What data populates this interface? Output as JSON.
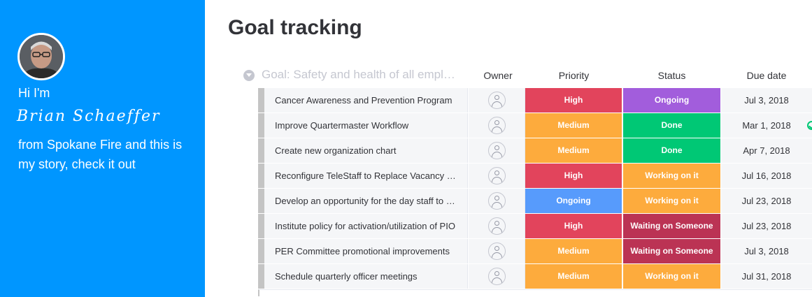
{
  "sidebar": {
    "greeting": "Hi I'm",
    "name": "Brian Schaeffer",
    "story": "from Spokane Fire and this is my story, check it out"
  },
  "page": {
    "title": "Goal tracking"
  },
  "group": {
    "title": "Goal: Safety and health of all empl…",
    "columns": {
      "owner": "Owner",
      "priority": "Priority",
      "status": "Status",
      "due_date": "Due date"
    }
  },
  "colors": {
    "sidebar_bg": "#0096ff",
    "high": "#e2445c",
    "medium": "#fdab3d",
    "ongoing_priority": "#579bfc",
    "ongoing_status": "#a25ddc",
    "done": "#00c875",
    "working_on_it": "#fdab3d",
    "waiting_on_someone": "#bb3354"
  },
  "rows": [
    {
      "name": "Cancer Awareness and Prevention Program",
      "priority": "High",
      "priority_color": "#e2445c",
      "status": "Ongoing",
      "status_color": "#a25ddc",
      "due": "Jul 3, 2018"
    },
    {
      "name": "Improve Quartermaster Workflow",
      "priority": "Medium",
      "priority_color": "#fdab3d",
      "status": "Done",
      "status_color": "#00c875",
      "due": "Mar 1, 2018"
    },
    {
      "name": "Create new organization chart",
      "priority": "Medium",
      "priority_color": "#fdab3d",
      "status": "Done",
      "status_color": "#00c875",
      "due": "Apr 7, 2018"
    },
    {
      "name": "Reconfigure TeleStaff to Replace Vacancy Reports",
      "priority": "High",
      "priority_color": "#e2445c",
      "status": "Working on it",
      "status_color": "#fdab3d",
      "due": "Jul 16, 2018"
    },
    {
      "name": "Develop an opportunity for the day staff to train",
      "priority": "Ongoing",
      "priority_color": "#579bfc",
      "status": "Working on it",
      "status_color": "#fdab3d",
      "due": "Jul 23, 2018"
    },
    {
      "name": "Institute policy for activation/utilization of PIO",
      "priority": "High",
      "priority_color": "#e2445c",
      "status": "Waiting on Someone",
      "status_color": "#bb3354",
      "due": "Jul 23, 2018"
    },
    {
      "name": "PER Committee promotional improvements",
      "priority": "Medium",
      "priority_color": "#fdab3d",
      "status": "Waiting on Someone",
      "status_color": "#bb3354",
      "due": "Jul 3, 2018"
    },
    {
      "name": "Schedule quarterly officer meetings",
      "priority": "Medium",
      "priority_color": "#fdab3d",
      "status": "Working on it",
      "status_color": "#fdab3d",
      "due": "Jul 31, 2018"
    }
  ]
}
